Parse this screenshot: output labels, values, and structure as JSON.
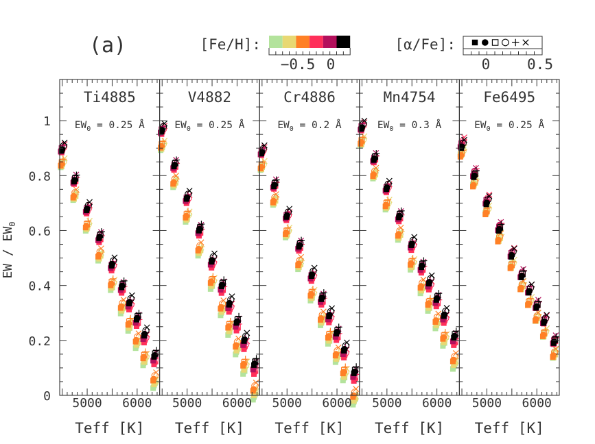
{
  "figure": {
    "panel_label": "(a)",
    "feh_legend": {
      "label": "[Fe/H]:",
      "colors": [
        "#b3e39c",
        "#e8d873",
        "#ff8026",
        "#ff2f5a",
        "#b3105c",
        "#000000"
      ],
      "tick_labels": [
        "−0.5",
        "0"
      ]
    },
    "afe_legend": {
      "label": "[α/Fe]:",
      "markers": [
        "filled-square",
        "filled-circle",
        "open-square",
        "open-circle",
        "plus",
        "cross"
      ],
      "tick_labels": [
        "0",
        "0.5"
      ]
    },
    "ylabel": "EW / EW",
    "ylabel_sub": "0",
    "xlabel": "Teff [K]"
  },
  "chart_data": {
    "type": "scatter",
    "ylim": [
      0,
      1.15
    ],
    "xlim": [
      4450,
      6450
    ],
    "yticks": [
      0,
      0.2,
      0.4,
      0.6,
      0.8,
      1
    ],
    "ytick_labels": [
      "0",
      "0.2",
      "0.4",
      "0.6",
      "0.8",
      "1"
    ],
    "xticks": [
      5000,
      6000
    ],
    "xtick_labels": [
      "5000",
      "6000"
    ],
    "panels": [
      {
        "name": "Ti4885",
        "ew0_prefix": "EW",
        "ew0_sub": "0",
        "ew0_value": " = 0.25 Å",
        "top": 0.92,
        "bottom": 0.17,
        "c_amp": 0.12
      },
      {
        "name": "V4882",
        "ew0_prefix": "EW",
        "ew0_sub": "0",
        "ew0_value": " = 0.25 Å",
        "top": 0.99,
        "bottom": 0.14,
        "c_amp": 0.13
      },
      {
        "name": "Cr4886",
        "ew0_prefix": "EW",
        "ew0_sub": "0",
        "ew0_value": " = 0.2 Å",
        "top": 0.91,
        "bottom": 0.11,
        "c_amp": 0.12
      },
      {
        "name": "Mn4754",
        "ew0_prefix": "EW",
        "ew0_sub": "0",
        "ew0_value": " = 0.3 Å",
        "top": 1.0,
        "bottom": 0.24,
        "c_amp": 0.12
      },
      {
        "name": "Fe6495",
        "ew0_prefix": "EW",
        "ew0_sub": "0",
        "ew0_value": " = 0.25 Å",
        "top": 0.93,
        "bottom": 0.22,
        "c_amp": 0.07
      }
    ],
    "teff_grid": [
      4500,
      4750,
      5000,
      5250,
      5500,
      5700,
      5850,
      6000,
      6150,
      6350
    ],
    "metallicity_levels": [
      -0.75,
      -0.6,
      -0.45,
      -0.3,
      -0.15,
      0
    ],
    "alpha_variants": [
      "filled-square",
      "filled-circle",
      "open-square",
      "open-circle",
      "plus",
      "cross"
    ]
  }
}
